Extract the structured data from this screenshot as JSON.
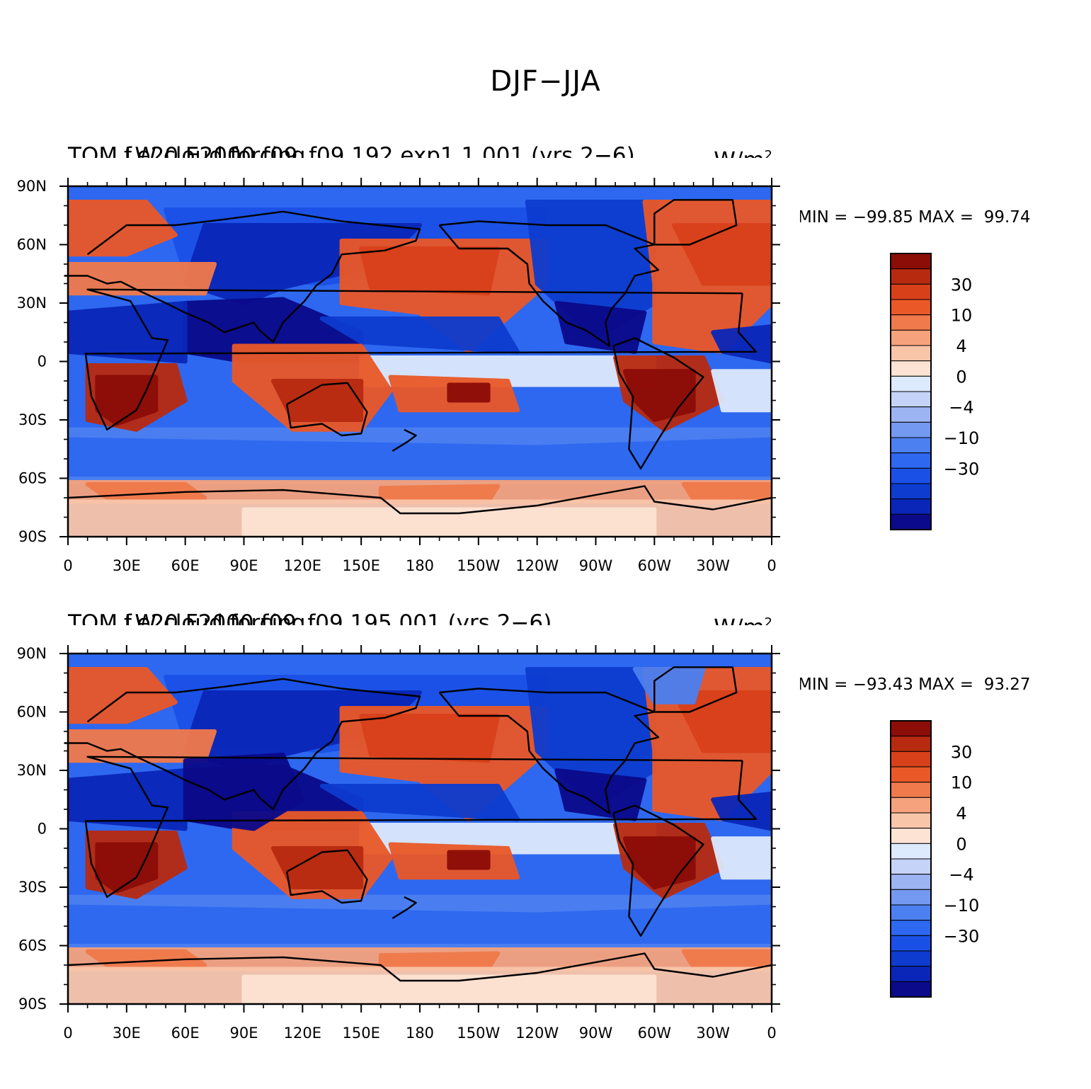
{
  "figure_title": "DJF−JJA",
  "colors": {
    "levels": [
      "#0a0a8a",
      "#0a26b8",
      "#0d3ccf",
      "#1a50e6",
      "#2e68f0",
      "#4c80f0",
      "#7499f0",
      "#9db4f2",
      "#c6d3f8",
      "#dde9fc",
      "#fde3d3",
      "#f9c5a9",
      "#f6a27d",
      "#f07a4b",
      "#ea5828",
      "#d8401a",
      "#b82a10",
      "#8c0c07"
    ]
  },
  "panels": [
    {
      "id": "control",
      "variable_label": "TOM LW cloud forcing",
      "case_label": "f.e20.E2000.f09_f09.192.exp1.1.001 (yrs 2−6)",
      "units": "W/m",
      "units_exp": "2",
      "minmax": "MIN = −99.85 MAX =  99.74"
    },
    {
      "id": "test",
      "variable_label": "TOM LW cloud forcing",
      "case_label": "f.e20.F2000.f09_f09.195.001 (yrs 2−6)",
      "units": "W/m",
      "units_exp": "2",
      "minmax": "MIN = −93.43 MAX =  93.27"
    }
  ],
  "axes": {
    "lat_ticks": [
      "90N",
      "60N",
      "30N",
      "0",
      "30S",
      "60S",
      "90S"
    ],
    "lon_ticks": [
      "0",
      "30E",
      "60E",
      "90E",
      "120E",
      "150E",
      "180",
      "150W",
      "120W",
      "90W",
      "60W",
      "30W",
      "0"
    ]
  },
  "colorbar": {
    "labels": [
      "30",
      "10",
      "4",
      "0",
      "−4",
      "−10",
      "−30"
    ]
  },
  "chart_data": [
    {
      "type": "heatmap",
      "title": "TOM LW cloud forcing",
      "subtitle": "f.e20.E2000.f09_f09.192.exp1.1.001 (yrs 2−6)",
      "units": "W/m2",
      "x_range": [
        0,
        360
      ],
      "y_range": [
        -90,
        90
      ],
      "min": -99.85,
      "max": 99.74,
      "colorbar_labels": [
        30,
        10,
        4,
        0,
        -4,
        -10,
        -30
      ]
    },
    {
      "type": "heatmap",
      "title": "TOM LW cloud forcing",
      "subtitle": "f.e20.F2000.f09_f09.195.001 (yrs 2−6)",
      "units": "W/m2",
      "x_range": [
        0,
        360
      ],
      "y_range": [
        -90,
        90
      ],
      "min": -93.43,
      "max": 93.27,
      "colorbar_labels": [
        30,
        10,
        4,
        0,
        -4,
        -10,
        -30
      ]
    }
  ]
}
